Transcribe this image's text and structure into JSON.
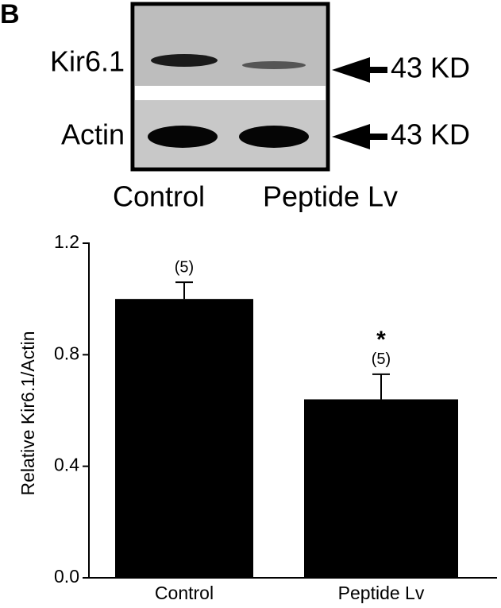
{
  "blot": {
    "panel_label": "B",
    "rows": [
      {
        "label": "Kir6.1",
        "size": "43 KD"
      },
      {
        "label": "Actin",
        "size": "43 KD"
      }
    ],
    "lanes": [
      "Control",
      "Peptide Lv"
    ]
  },
  "chart_data": {
    "type": "bar",
    "y_label": "Relative Kir6.1/Actin",
    "categories": [
      "Control",
      "Peptide Lv"
    ],
    "values": [
      1.0,
      0.64
    ],
    "errors": [
      0.06,
      0.09
    ],
    "color": "#000000",
    "annotations": [
      {
        "category": "Control",
        "text": "(5)"
      },
      {
        "category": "Peptide Lv",
        "text": "(5)"
      },
      {
        "category": "Peptide Lv",
        "text": "*"
      }
    ],
    "ylim": [
      0,
      1.2
    ],
    "yticks": [
      {
        "value": 0,
        "label": "0.0"
      },
      {
        "value": 0.4,
        "label": "0.4"
      },
      {
        "value": 0.8,
        "label": "0.8"
      },
      {
        "value": 1.2,
        "label": "1.2"
      }
    ]
  }
}
